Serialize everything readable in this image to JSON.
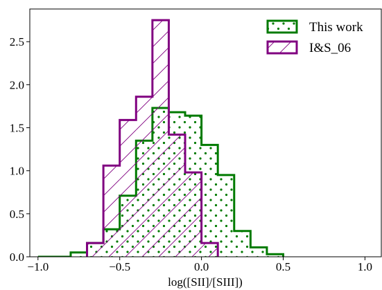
{
  "chart_data": {
    "type": "histogram",
    "xlabel": "log([SII]/[SIII])",
    "ylabel": "",
    "xlim": [
      -1.05,
      1.1
    ],
    "ylim": [
      0,
      2.88
    ],
    "xticks": [
      -1.0,
      -0.5,
      0.0,
      0.5,
      1.0
    ],
    "xtick_labels": [
      "−1.0",
      "−0.5",
      "0.0",
      "0.5",
      "1.0"
    ],
    "yticks": [
      0.0,
      0.5,
      1.0,
      1.5,
      2.0,
      2.5
    ],
    "ytick_labels": [
      "0.0",
      "0.5",
      "1.0",
      "1.5",
      "2.0",
      "2.5"
    ],
    "grid": false,
    "legend_position": "top-right",
    "series": [
      {
        "name": "This work",
        "color": "#007a00",
        "hatch": "dots",
        "bin_edges": [
          -1.0,
          -0.8,
          -0.7,
          -0.6,
          -0.5,
          -0.4,
          -0.3,
          -0.2,
          -0.1,
          0.0,
          0.1,
          0.2,
          0.3,
          0.4,
          0.5
        ],
        "values": [
          0.0,
          0.05,
          0.16,
          0.32,
          0.71,
          1.35,
          1.73,
          1.68,
          1.64,
          1.3,
          0.95,
          0.3,
          0.11,
          0.03
        ]
      },
      {
        "name": "I&S_06",
        "color": "#800080",
        "hatch": "diagonal",
        "bin_edges": [
          -0.7,
          -0.6,
          -0.5,
          -0.4,
          -0.3,
          -0.2,
          -0.1,
          0.0,
          0.1
        ],
        "values": [
          0.16,
          1.06,
          1.59,
          1.86,
          2.75,
          1.42,
          0.98,
          0.16
        ]
      }
    ]
  }
}
